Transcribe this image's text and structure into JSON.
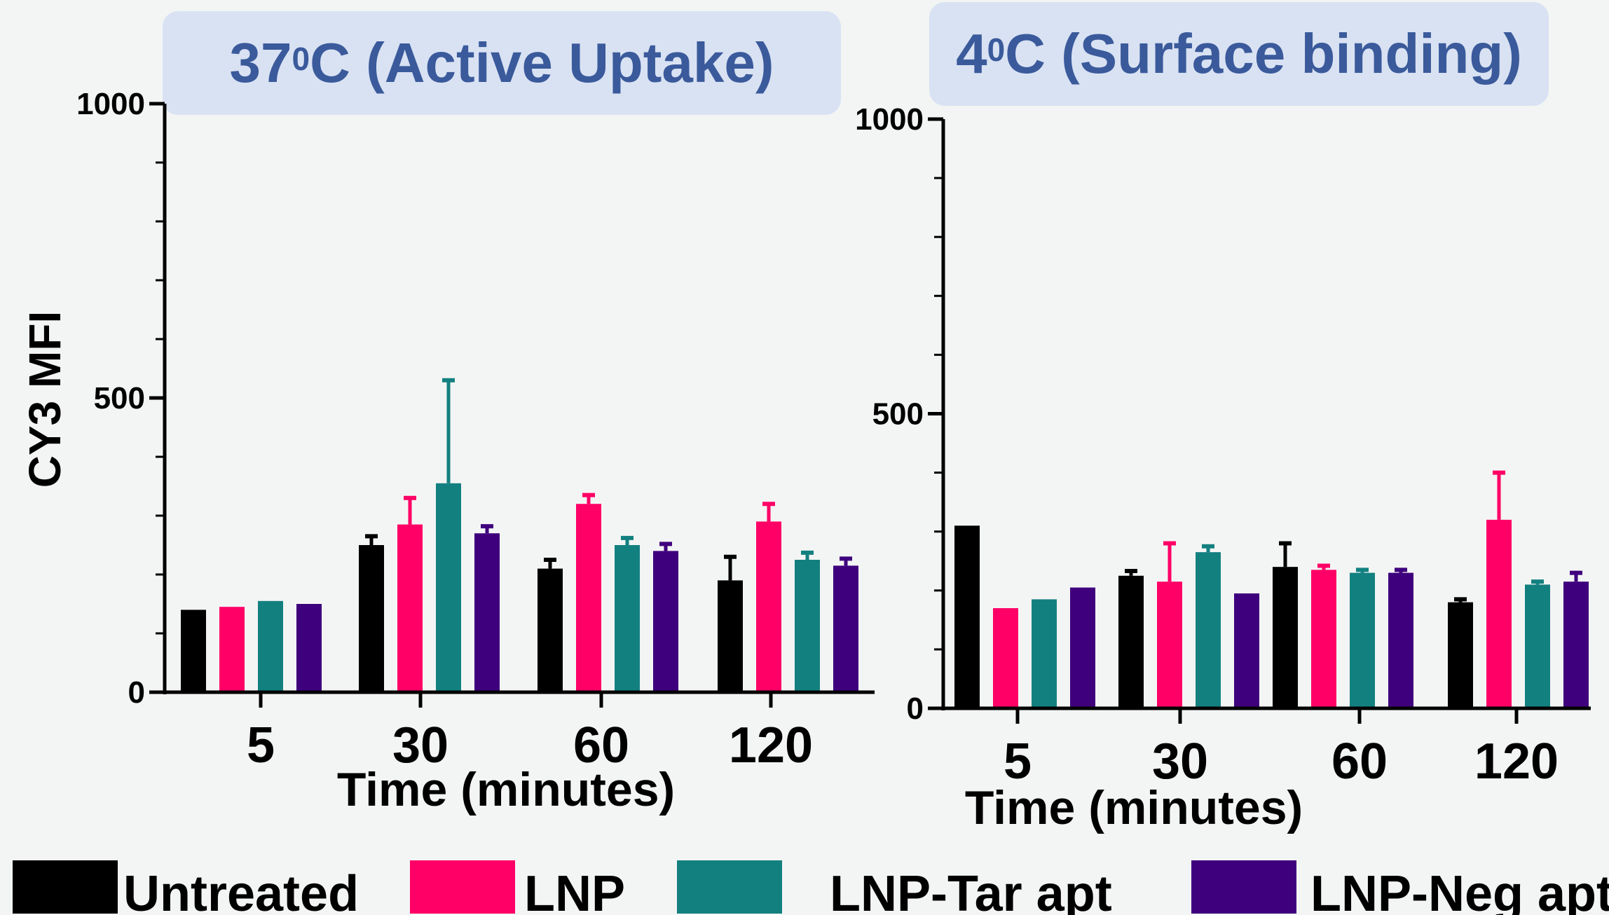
{
  "colors": {
    "Untreated": "#000000",
    "LNP": "#ff0066",
    "LNP-Tar apt": "#138080",
    "LNP-Neg apt": "#3f007d"
  },
  "legend": [
    "Untreated",
    "LNP",
    "LNP-Tar apt",
    "LNP-Neg apt"
  ],
  "ylabel": "CY3  MFI",
  "chart_data": [
    {
      "type": "bar",
      "title_main": "37",
      "title_sup": "0",
      "title_rest": "C (Active Uptake)",
      "xlabel": "Time (minutes)",
      "ylabel": "CY3  MFI",
      "categories": [
        "5",
        "30",
        "60",
        "120"
      ],
      "ylim": [
        0,
        1000
      ],
      "yticks": [
        "0",
        "500",
        "1000"
      ],
      "series": [
        {
          "name": "Untreated",
          "values": [
            140,
            250,
            210,
            190
          ],
          "errors": [
            0,
            15,
            15,
            40
          ]
        },
        {
          "name": "LNP",
          "values": [
            145,
            285,
            320,
            290
          ],
          "errors": [
            0,
            45,
            15,
            30
          ]
        },
        {
          "name": "LNP-Tar apt",
          "values": [
            155,
            355,
            250,
            225
          ],
          "errors": [
            0,
            175,
            12,
            12
          ]
        },
        {
          "name": "LNP-Neg apt",
          "values": [
            150,
            270,
            240,
            215
          ],
          "errors": [
            0,
            12,
            12,
            12
          ]
        }
      ]
    },
    {
      "type": "bar",
      "title_main": "4",
      "title_sup": "0",
      "title_rest": "C (Surface binding)",
      "xlabel": "Time (minutes)",
      "ylabel": "",
      "categories": [
        "5",
        "30",
        "60",
        "120"
      ],
      "ylim": [
        0,
        1000
      ],
      "yticks": [
        "0",
        "500",
        "1000"
      ],
      "series": [
        {
          "name": "Untreated",
          "values": [
            310,
            225,
            240,
            180
          ],
          "errors": [
            0,
            8,
            40,
            5
          ]
        },
        {
          "name": "LNP",
          "values": [
            170,
            215,
            235,
            320
          ],
          "errors": [
            0,
            65,
            7,
            80
          ]
        },
        {
          "name": "LNP-Tar apt",
          "values": [
            185,
            265,
            230,
            210
          ],
          "errors": [
            0,
            10,
            5,
            5
          ]
        },
        {
          "name": "LNP-Neg apt",
          "values": [
            205,
            195,
            230,
            215
          ],
          "errors": [
            0,
            0,
            5,
            15
          ]
        }
      ]
    }
  ]
}
